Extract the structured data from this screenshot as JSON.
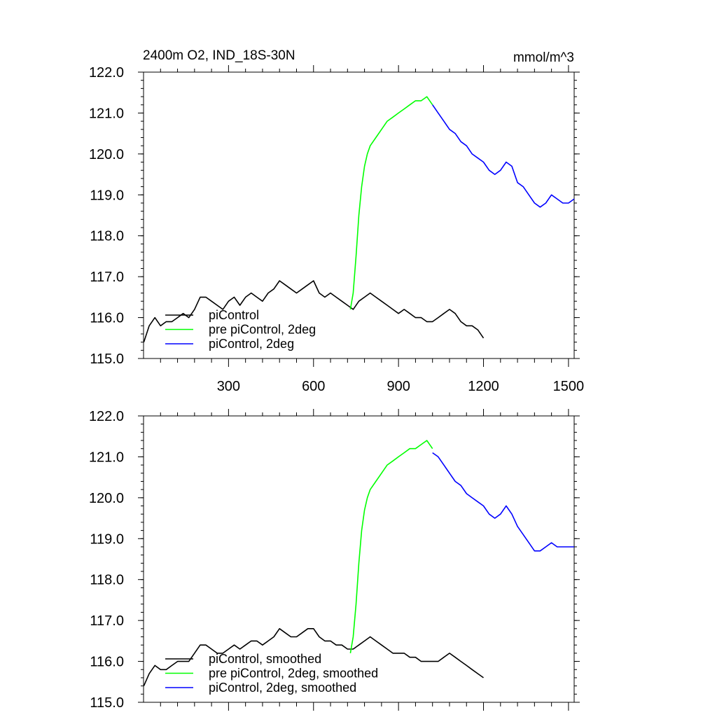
{
  "title": "2400m O2, IND_18S-30N",
  "units": "mmol/m^3",
  "chart_data": [
    {
      "type": "line",
      "title": "2400m O2, IND_18S-30N",
      "units": "mmol/m^3",
      "xlim": [
        0,
        1520
      ],
      "ylim": [
        115.0,
        122.0
      ],
      "xticks": [
        300,
        600,
        900,
        1200,
        1500
      ],
      "xtick_labels": [
        "300",
        "600",
        "900",
        "1200",
        "1500"
      ],
      "yticks": [
        115.0,
        116.0,
        117.0,
        118.0,
        119.0,
        120.0,
        121.0,
        122.0
      ],
      "ytick_labels": [
        "115.0",
        "116.0",
        "117.0",
        "118.0",
        "119.0",
        "120.0",
        "121.0",
        "122.0"
      ],
      "grid": false,
      "legend": "lower-left",
      "series": [
        {
          "name": "piControl",
          "color": "#000000",
          "x": [
            1,
            20,
            40,
            60,
            80,
            100,
            120,
            140,
            160,
            180,
            200,
            220,
            240,
            260,
            280,
            300,
            320,
            340,
            360,
            380,
            400,
            420,
            440,
            460,
            480,
            500,
            520,
            540,
            560,
            580,
            600,
            620,
            640,
            660,
            680,
            700,
            720,
            740,
            760,
            780,
            800,
            820,
            840,
            860,
            880,
            900,
            920,
            940,
            960,
            980,
            1000,
            1020,
            1040,
            1060,
            1080,
            1100,
            1120,
            1140,
            1160,
            1180,
            1200
          ],
          "y": [
            115.4,
            115.8,
            116.0,
            115.8,
            115.9,
            115.9,
            116.0,
            116.1,
            116.0,
            116.2,
            116.5,
            116.5,
            116.4,
            116.3,
            116.2,
            116.4,
            116.5,
            116.3,
            116.5,
            116.6,
            116.5,
            116.4,
            116.6,
            116.7,
            116.9,
            116.8,
            116.7,
            116.6,
            116.7,
            116.8,
            116.9,
            116.6,
            116.5,
            116.6,
            116.5,
            116.4,
            116.3,
            116.2,
            116.4,
            116.5,
            116.6,
            116.5,
            116.4,
            116.3,
            116.2,
            116.1,
            116.2,
            116.1,
            116.0,
            116.0,
            115.9,
            115.9,
            116.0,
            116.1,
            116.2,
            116.1,
            115.9,
            115.8,
            115.8,
            115.7,
            115.5
          ]
        },
        {
          "name": "pre piControl, 2deg",
          "color": "#00ff00",
          "x": [
            730,
            740,
            750,
            760,
            770,
            780,
            790,
            800,
            820,
            840,
            860,
            880,
            900,
            920,
            940,
            960,
            980,
            1000,
            1020
          ],
          "y": [
            116.2,
            116.6,
            117.5,
            118.5,
            119.2,
            119.7,
            120.0,
            120.2,
            120.4,
            120.6,
            120.8,
            120.9,
            121.0,
            121.1,
            121.2,
            121.3,
            121.3,
            121.4,
            121.2
          ]
        },
        {
          "name": "piControl, 2deg",
          "color": "#0000ff",
          "x": [
            1020,
            1040,
            1060,
            1080,
            1100,
            1120,
            1140,
            1160,
            1180,
            1200,
            1220,
            1240,
            1260,
            1280,
            1300,
            1320,
            1340,
            1360,
            1380,
            1400,
            1420,
            1440,
            1460,
            1480,
            1500,
            1520
          ],
          "y": [
            121.2,
            121.0,
            120.8,
            120.6,
            120.5,
            120.3,
            120.2,
            120.0,
            119.9,
            119.8,
            119.6,
            119.5,
            119.6,
            119.8,
            119.7,
            119.3,
            119.2,
            119.0,
            118.8,
            118.7,
            118.8,
            119.0,
            118.9,
            118.8,
            118.8,
            118.9
          ]
        }
      ]
    },
    {
      "type": "line",
      "xlim": [
        0,
        1520
      ],
      "ylim": [
        115.0,
        122.0
      ],
      "xticks": [
        300,
        600,
        900,
        1200,
        1500
      ],
      "yticks": [
        115.0,
        116.0,
        117.0,
        118.0,
        119.0,
        120.0,
        121.0,
        122.0
      ],
      "ytick_labels": [
        "115.0",
        "116.0",
        "117.0",
        "118.0",
        "119.0",
        "120.0",
        "121.0",
        "122.0"
      ],
      "grid": false,
      "legend": "lower-left",
      "series": [
        {
          "name": "piControl, smoothed",
          "color": "#000000",
          "x": [
            1,
            20,
            40,
            60,
            80,
            100,
            120,
            140,
            160,
            180,
            200,
            220,
            240,
            260,
            280,
            300,
            320,
            340,
            360,
            380,
            400,
            420,
            440,
            460,
            480,
            500,
            520,
            540,
            560,
            580,
            600,
            620,
            640,
            660,
            680,
            700,
            720,
            740,
            760,
            780,
            800,
            820,
            840,
            860,
            880,
            900,
            920,
            940,
            960,
            980,
            1000,
            1020,
            1040,
            1060,
            1080,
            1100,
            1120,
            1140,
            1160,
            1180,
            1200
          ],
          "y": [
            115.4,
            115.7,
            115.9,
            115.8,
            115.8,
            115.9,
            116.0,
            116.0,
            116.0,
            116.2,
            116.4,
            116.4,
            116.3,
            116.2,
            116.2,
            116.3,
            116.4,
            116.3,
            116.4,
            116.5,
            116.5,
            116.4,
            116.5,
            116.6,
            116.8,
            116.7,
            116.6,
            116.6,
            116.7,
            116.8,
            116.8,
            116.6,
            116.5,
            116.5,
            116.4,
            116.4,
            116.3,
            116.3,
            116.4,
            116.5,
            116.6,
            116.5,
            116.4,
            116.3,
            116.2,
            116.2,
            116.2,
            116.1,
            116.1,
            116.0,
            116.0,
            116.0,
            116.0,
            116.1,
            116.2,
            116.1,
            116.0,
            115.9,
            115.8,
            115.7,
            115.6
          ]
        },
        {
          "name": "pre piControl, 2deg, smoothed",
          "color": "#00ff00",
          "x": [
            730,
            740,
            750,
            760,
            770,
            780,
            790,
            800,
            820,
            840,
            860,
            880,
            900,
            920,
            940,
            960,
            980,
            1000,
            1020
          ],
          "y": [
            116.2,
            116.6,
            117.4,
            118.4,
            119.2,
            119.7,
            120.0,
            120.2,
            120.4,
            120.6,
            120.8,
            120.9,
            121.0,
            121.1,
            121.2,
            121.2,
            121.3,
            121.4,
            121.2
          ]
        },
        {
          "name": "piControl, 2deg, smoothed",
          "color": "#0000ff",
          "x": [
            1020,
            1040,
            1060,
            1080,
            1100,
            1120,
            1140,
            1160,
            1180,
            1200,
            1220,
            1240,
            1260,
            1280,
            1300,
            1320,
            1340,
            1360,
            1380,
            1400,
            1420,
            1440,
            1460,
            1480,
            1500,
            1520
          ],
          "y": [
            121.1,
            121.0,
            120.8,
            120.6,
            120.4,
            120.3,
            120.1,
            120.0,
            119.9,
            119.8,
            119.6,
            119.5,
            119.6,
            119.8,
            119.6,
            119.3,
            119.1,
            118.9,
            118.7,
            118.7,
            118.8,
            118.9,
            118.8,
            118.8,
            118.8,
            118.8
          ]
        }
      ]
    }
  ]
}
